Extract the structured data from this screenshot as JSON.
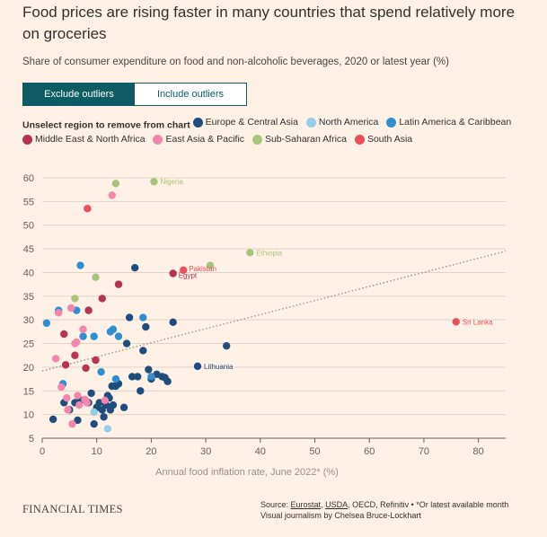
{
  "header": {
    "title": "Food prices are rising faster in many countries that spend relatively more on groceries",
    "subtitle": "Share of consumer expenditure on food and non-alcoholic beverages, 2020 or latest year (%)"
  },
  "toggle": {
    "exclude_label": "Exclude outliers",
    "include_label": "Include outliers"
  },
  "legend": {
    "title": "Unselect region to remove from chart",
    "items": [
      {
        "label": "Europe & Central Asia",
        "color": "#1f4e7e"
      },
      {
        "label": "North America",
        "color": "#93cfe8"
      },
      {
        "label": "Latin America & Caribbean",
        "color": "#2f8fd0"
      },
      {
        "label": "Middle East & North Africa",
        "color": "#b8334e"
      },
      {
        "label": "East Asia & Pacific",
        "color": "#f286ab"
      },
      {
        "label": "Sub-Saharan Africa",
        "color": "#a6c57b"
      },
      {
        "label": "South Asia",
        "color": "#eb4f57"
      }
    ]
  },
  "footer": {
    "logo": "FINANCIAL TIMES",
    "source_prefix": "Source: ",
    "source_eurostat": "Eurostat",
    "source_sep1": ", ",
    "source_usda": "USDA",
    "source_rest": ", OECD, Refinitiv • *Or latest available month",
    "credit": "Visual journalism by Chelsea Bruce-Lockhart"
  },
  "chart_data": {
    "type": "scatter",
    "xlabel": "Annual food inflation rate, June 2022* (%)",
    "ylabel": "",
    "xlim": [
      0,
      85
    ],
    "ylim": [
      5,
      60
    ],
    "xticks": [
      0,
      10,
      20,
      30,
      40,
      50,
      60,
      70,
      80
    ],
    "yticks": [
      5,
      10,
      15,
      20,
      25,
      30,
      35,
      40,
      45,
      50,
      55,
      60
    ],
    "grid": true,
    "trendline": {
      "style": "dotted",
      "from": [
        0,
        19.2
      ],
      "to": [
        85,
        44.5
      ]
    },
    "series": [
      {
        "name": "Europe & Central Asia",
        "color": "#1f4e7e",
        "points": [
          {
            "x": 2,
            "y": 9
          },
          {
            "x": 4,
            "y": 12.5
          },
          {
            "x": 5,
            "y": 11
          },
          {
            "x": 6,
            "y": 12.5
          },
          {
            "x": 6.5,
            "y": 8.8
          },
          {
            "x": 7,
            "y": 13
          },
          {
            "x": 8.5,
            "y": 12.5
          },
          {
            "x": 9,
            "y": 14.5
          },
          {
            "x": 9.5,
            "y": 8
          },
          {
            "x": 10,
            "y": 11.5
          },
          {
            "x": 10.5,
            "y": 12.5
          },
          {
            "x": 11,
            "y": 11
          },
          {
            "x": 11.3,
            "y": 9.5
          },
          {
            "x": 11.7,
            "y": 12
          },
          {
            "x": 12,
            "y": 14
          },
          {
            "x": 12.3,
            "y": 13.5
          },
          {
            "x": 12.5,
            "y": 11
          },
          {
            "x": 12.8,
            "y": 16
          },
          {
            "x": 13,
            "y": 12
          },
          {
            "x": 13.5,
            "y": 16
          },
          {
            "x": 14,
            "y": 16.5
          },
          {
            "x": 15,
            "y": 11.5
          },
          {
            "x": 15.5,
            "y": 25
          },
          {
            "x": 16,
            "y": 30.5
          },
          {
            "x": 16.5,
            "y": 18
          },
          {
            "x": 17,
            "y": 41
          },
          {
            "x": 17.5,
            "y": 18
          },
          {
            "x": 18,
            "y": 15
          },
          {
            "x": 18.5,
            "y": 23.5
          },
          {
            "x": 19,
            "y": 28.5
          },
          {
            "x": 19.5,
            "y": 19.5
          },
          {
            "x": 20,
            "y": 17.5
          },
          {
            "x": 21,
            "y": 18.5
          },
          {
            "x": 22,
            "y": 18
          },
          {
            "x": 22.5,
            "y": 17.8
          },
          {
            "x": 23,
            "y": 17
          },
          {
            "x": 24,
            "y": 29.5
          },
          {
            "x": 28.5,
            "y": 20.2,
            "label": "Lithuania"
          },
          {
            "x": 33.8,
            "y": 24.5
          }
        ]
      },
      {
        "name": "North America",
        "color": "#93cfe8",
        "points": [
          {
            "x": 9.5,
            "y": 10.5
          },
          {
            "x": 12,
            "y": 7
          }
        ]
      },
      {
        "name": "Latin America & Caribbean",
        "color": "#2f8fd0",
        "points": [
          {
            "x": 0.8,
            "y": 29.3
          },
          {
            "x": 3,
            "y": 32
          },
          {
            "x": 3.8,
            "y": 16.5
          },
          {
            "x": 6.3,
            "y": 32
          },
          {
            "x": 7,
            "y": 41.5
          },
          {
            "x": 7.5,
            "y": 26.5
          },
          {
            "x": 9.5,
            "y": 26.5
          },
          {
            "x": 10.8,
            "y": 19
          },
          {
            "x": 12.5,
            "y": 27.5
          },
          {
            "x": 13,
            "y": 28
          },
          {
            "x": 13.5,
            "y": 17.5
          },
          {
            "x": 14,
            "y": 26.5
          },
          {
            "x": 18.5,
            "y": 30.5
          },
          {
            "x": 20,
            "y": 18
          }
        ]
      },
      {
        "name": "Middle East & North Africa",
        "color": "#b8334e",
        "points": [
          {
            "x": 4,
            "y": 27
          },
          {
            "x": 4.3,
            "y": 20.5
          },
          {
            "x": 6,
            "y": 22.5
          },
          {
            "x": 8,
            "y": 19.8
          },
          {
            "x": 8.5,
            "y": 32
          },
          {
            "x": 9.8,
            "y": 21.5
          },
          {
            "x": 11,
            "y": 34.5
          },
          {
            "x": 14,
            "y": 37.5
          },
          {
            "x": 24,
            "y": 39.8,
            "label": "Egypt"
          }
        ]
      },
      {
        "name": "East Asia & Pacific",
        "color": "#f286ab",
        "points": [
          {
            "x": 2.5,
            "y": 21.8
          },
          {
            "x": 3,
            "y": 31.5
          },
          {
            "x": 3.5,
            "y": 15.8
          },
          {
            "x": 4.5,
            "y": 13.5
          },
          {
            "x": 4.7,
            "y": 11
          },
          {
            "x": 5.3,
            "y": 32.5
          },
          {
            "x": 5.5,
            "y": 8
          },
          {
            "x": 6,
            "y": 25
          },
          {
            "x": 6.3,
            "y": 25.3
          },
          {
            "x": 6.5,
            "y": 14
          },
          {
            "x": 6.8,
            "y": 12
          },
          {
            "x": 7.5,
            "y": 28
          },
          {
            "x": 7.8,
            "y": 13.2
          },
          {
            "x": 8.2,
            "y": 12.5
          },
          {
            "x": 11.5,
            "y": 13
          },
          {
            "x": 12.8,
            "y": 56.3
          }
        ]
      },
      {
        "name": "Sub-Saharan Africa",
        "color": "#a6c57b",
        "points": [
          {
            "x": 6,
            "y": 34.5
          },
          {
            "x": 9.8,
            "y": 39
          },
          {
            "x": 13.5,
            "y": 58.8
          },
          {
            "x": 20.5,
            "y": 59.2,
            "label": "Nigeria"
          },
          {
            "x": 30.8,
            "y": 41.5
          },
          {
            "x": 38.1,
            "y": 44.2,
            "label": "Ethiopia"
          }
        ]
      },
      {
        "name": "South Asia",
        "color": "#eb4f57",
        "points": [
          {
            "x": 8.3,
            "y": 53.5
          },
          {
            "x": 25.9,
            "y": 40.5,
            "label": "Pakistan"
          },
          {
            "x": 75.9,
            "y": 29.6,
            "label": "Sri Lanka"
          }
        ]
      }
    ]
  }
}
